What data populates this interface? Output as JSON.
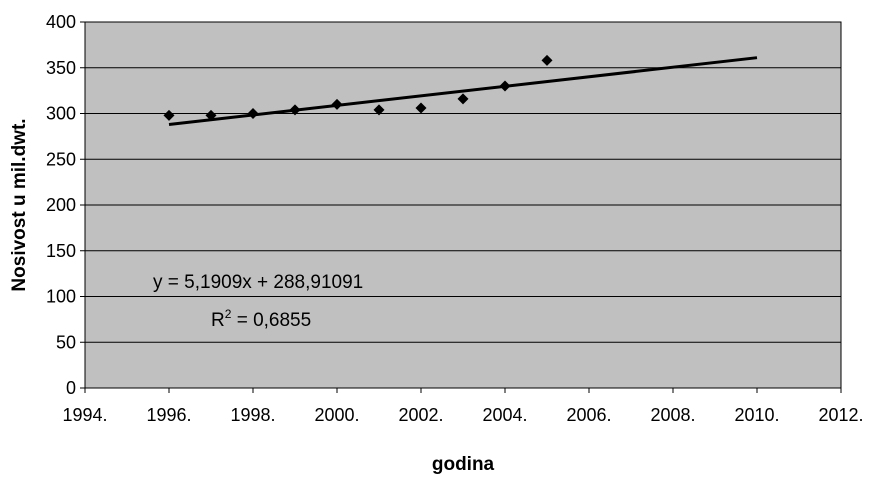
{
  "chart_data": {
    "type": "scatter",
    "title": "",
    "xlabel": "godina",
    "ylabel": "Nosivost u mil.dwt.",
    "xlim": [
      1994,
      2012
    ],
    "ylim": [
      0,
      400
    ],
    "x_ticks": [
      1994,
      1996,
      1998,
      2000,
      2002,
      2004,
      2006,
      2008,
      2010,
      2012
    ],
    "x_tick_labels": [
      "1994.",
      "1996.",
      "1998.",
      "2000.",
      "2002.",
      "2004.",
      "2006.",
      "2008.",
      "2010.",
      "2012."
    ],
    "y_ticks": [
      0,
      50,
      100,
      150,
      200,
      250,
      300,
      350,
      400
    ],
    "y_tick_labels": [
      "0",
      "50",
      "100",
      "150",
      "200",
      "250",
      "300",
      "350",
      "400"
    ],
    "grid": "horizontal",
    "plot_background": "#c0c0c0",
    "series": [
      {
        "marker": "diamond",
        "color": "#000000",
        "x": [
          1996,
          1997,
          1998,
          1999,
          2000,
          2001,
          2002,
          2003,
          2004,
          2005
        ],
        "y": [
          298,
          298,
          300,
          304,
          310,
          304,
          306,
          316,
          330,
          358
        ]
      }
    ],
    "trendline": {
      "type": "linear",
      "x": [
        1996,
        2010
      ],
      "y": [
        288,
        361
      ],
      "color": "#000000"
    },
    "annotations": {
      "equation": "y = 5,1909x + 288,91091",
      "r2_prefix": "R",
      "r2_sup": "2",
      "r2_value": " = 0,6855"
    }
  }
}
